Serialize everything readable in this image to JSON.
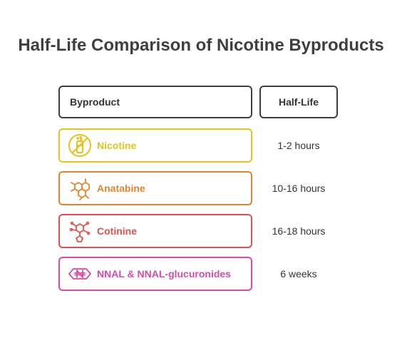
{
  "title": "Half-Life Comparison of Nicotine Byproducts",
  "headers": {
    "byproduct": "Byproduct",
    "half_life": "Half-Life"
  },
  "rows": [
    {
      "name": "Nicotine",
      "half_life": "1-2 hours",
      "color": "#e2c41a",
      "icon": "no-smoking-icon"
    },
    {
      "name": "Anatabine",
      "half_life": "10-16 hours",
      "color": "#e0852e",
      "icon": "molecule-rings-icon"
    },
    {
      "name": "Cotinine",
      "half_life": "16-18 hours",
      "color": "#e0514f",
      "icon": "molecule-structure-icon"
    },
    {
      "name": "NNAL & NNAL-glucuronides",
      "half_life": "6 weeks",
      "color": "#d94aa8",
      "icon": "compound-badge-icon"
    }
  ]
}
